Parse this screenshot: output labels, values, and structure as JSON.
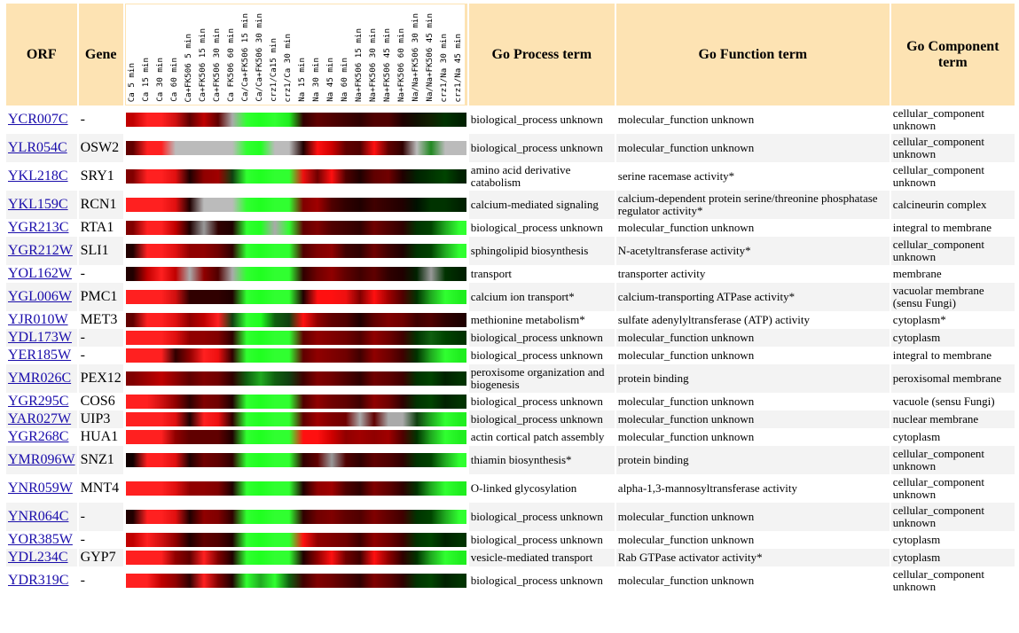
{
  "headers": {
    "orf": "ORF",
    "gene": "Gene",
    "process": "Go Process term",
    "function": "Go Function term",
    "component": "Go Component term"
  },
  "conditions": [
    "Ca 5 min",
    "Ca 15 min",
    "Ca 30 min",
    "Ca 60 min",
    "Ca+FK506 5 min",
    "Ca+FK506 15 min",
    "Ca+FK506 30 min",
    "Ca FK506 60 min",
    "Ca/Ca+FK506 15 min",
    "Ca/Ca+FK506 30 min",
    "crz1/Ca15 min",
    "crz1/Ca 30 min",
    "Na 15 min",
    "Na 30 min",
    "Na 45 min",
    "Na 60 min",
    "Na+FK506 15 min",
    "Na+FK506 30 min",
    "Na+FK506 45 min",
    "Na+FK506 60 min",
    "Na/Na+FK506 30 min",
    "Na/Na+FK506 45 min",
    "crz1/Na 30 min",
    "crz1/Na 45 min"
  ],
  "rows": [
    {
      "orf": "YCR007C",
      "gene": "-",
      "process": "biological_process unknown",
      "function": "molecular_function unknown",
      "component": "cellular_component unknown",
      "heat": [
        "#c00000",
        "#ff2020",
        "#ff2020",
        "#d01010",
        "#600000",
        "#c00000",
        "#600000",
        "#aaaaaa",
        "#30ff30",
        "#20ff20",
        "#30ff30",
        "#20ee20",
        "#300000",
        "#600000",
        "#500000",
        "#400000",
        "#300000",
        "#500000",
        "#500000",
        "#200000",
        "#101000",
        "#102000",
        "#003300",
        "#002200"
      ]
    },
    {
      "orf": "YLR054C",
      "gene": "OSW2",
      "process": "biological_process unknown",
      "function": "molecular_function unknown",
      "component": "cellular_component unknown",
      "heat": [
        "#600000",
        "#ff2020",
        "#ff2020",
        "#bbbbbb",
        "#bbbbbb",
        "#bbbbbb",
        "#bbbbbb",
        "#bbbbbb",
        "#30ff30",
        "#20ff20",
        "#bbbbbb",
        "#bbbbbb",
        "#200000",
        "#ff1010",
        "#d00000",
        "#600000",
        "#500000",
        "#ff1010",
        "#600000",
        "#300000",
        "#bbbbbb",
        "#208820",
        "#bbbbbb",
        "#bbbbbb"
      ]
    },
    {
      "orf": "YKL218C",
      "gene": "SRY1",
      "process": "amino acid derivative catabolism",
      "function": "serine racemase activity*",
      "component": "cellular_component unknown",
      "heat": [
        "#800000",
        "#ff2020",
        "#ff2020",
        "#e01010",
        "#200000",
        "#900000",
        "#a00000",
        "#104010",
        "#30ff30",
        "#20ff20",
        "#30ff30",
        "#30ff30",
        "#ee1010",
        "#700000",
        "#ff1010",
        "#500000",
        "#200000",
        "#600000",
        "#700000",
        "#200000",
        "#002200",
        "#003300",
        "#004400",
        "#002200"
      ]
    },
    {
      "orf": "YKL159C",
      "gene": "RCN1",
      "process": "calcium-mediated signaling",
      "function": "calcium-dependent protein serine/threonine phosphatase regulator activity*",
      "component": "calcineurin complex",
      "heat": [
        "#ff2020",
        "#ff2020",
        "#ff2020",
        "#e01010",
        "#200000",
        "#bbbbbb",
        "#bbbbbb",
        "#bbbbbb",
        "#30ff30",
        "#20ff20",
        "#30ff30",
        "#30ff30",
        "#800000",
        "#a00000",
        "#500000",
        "#300000",
        "#200000",
        "#400000",
        "#300000",
        "#200000",
        "#001100",
        "#003300",
        "#003300",
        "#002200"
      ]
    },
    {
      "orf": "YGR213C",
      "gene": "RTA1",
      "process": "biological_process unknown",
      "function": "molecular_function unknown",
      "component": "integral to membrane",
      "heat": [
        "#800000",
        "#ff2020",
        "#ff2020",
        "#c00000",
        "#200000",
        "#999999",
        "#300000",
        "#200000",
        "#30ff30",
        "#20ff20",
        "#aaaaaa",
        "#30ff30",
        "#600000",
        "#800000",
        "#500000",
        "#400000",
        "#300000",
        "#700000",
        "#500000",
        "#300000",
        "#003300",
        "#004400",
        "#20aa20",
        "#30ff30"
      ]
    },
    {
      "orf": "YGR212W",
      "gene": "SLI1",
      "process": "sphingolipid biosynthesis",
      "function": "N-acetyltransferase activity*",
      "component": "cellular_component unknown",
      "heat": [
        "#200000",
        "#ff2020",
        "#ff2020",
        "#e01010",
        "#900000",
        "#900000",
        "#700000",
        "#300000",
        "#30ff30",
        "#20ff20",
        "#30ff30",
        "#30ff30",
        "#500000",
        "#800000",
        "#900000",
        "#400000",
        "#300000",
        "#700000",
        "#400000",
        "#200000",
        "#003300",
        "#004400",
        "#20aa20",
        "#30ff30"
      ]
    },
    {
      "orf": "YOL162W",
      "gene": "-",
      "process": "transport",
      "function": "transporter activity",
      "component": "membrane",
      "heat": [
        "#200000",
        "#c00000",
        "#ff2020",
        "#c00000",
        "#aaaaaa",
        "#900000",
        "#500000",
        "#aaaaaa",
        "#30ff30",
        "#20ff20",
        "#30ff30",
        "#30ff30",
        "#300000",
        "#700000",
        "#900000",
        "#600000",
        "#400000",
        "#600000",
        "#300000",
        "#200000",
        "#002200",
        "#999999",
        "#003300",
        "#002200"
      ]
    },
    {
      "orf": "YGL006W",
      "gene": "PMC1",
      "process": "calcium ion transport*",
      "function": "calcium-transporting ATPase activity*",
      "component": "vacuolar membrane (sensu Fungi)",
      "heat": [
        "#ff2020",
        "#ff2020",
        "#ff2020",
        "#d01010",
        "#300000",
        "#300000",
        "#300000",
        "#200000",
        "#30ff30",
        "#20ff20",
        "#30ff30",
        "#30ff30",
        "#200000",
        "#ff1010",
        "#ff1010",
        "#ee1010",
        "#800000",
        "#ff1010",
        "#a00000",
        "#500000",
        "#003300",
        "#20aa20",
        "#30ff30",
        "#20ee20"
      ]
    },
    {
      "orf": "YJR010W",
      "gene": "MET3",
      "process": "methionine metabolism*",
      "function": "sulfate adenylyltransferase (ATP) activity",
      "component": "cytoplasm*",
      "heat": [
        "#600000",
        "#ff2020",
        "#ff2020",
        "#e01010",
        "#900000",
        "#c00000",
        "#ff2020",
        "#104010",
        "#30ff30",
        "#20ff20",
        "#106010",
        "#104010",
        "#ff1010",
        "#900000",
        "#600000",
        "#500000",
        "#200000",
        "#600000",
        "#800000",
        "#700000",
        "#400000",
        "#500000",
        "#300000",
        "#200000"
      ]
    },
    {
      "orf": "YDL173W",
      "gene": "-",
      "process": "biological_process unknown",
      "function": "molecular_function unknown",
      "component": "cytoplasm",
      "heat": [
        "#ff2020",
        "#ff2020",
        "#ff2020",
        "#e01010",
        "#900000",
        "#900000",
        "#800000",
        "#300000",
        "#30ff30",
        "#20ff20",
        "#30ff30",
        "#30ff30",
        "#600000",
        "#900000",
        "#800000",
        "#700000",
        "#500000",
        "#900000",
        "#700000",
        "#400000",
        "#003300",
        "#106010",
        "#004400",
        "#003300"
      ]
    },
    {
      "orf": "YER185W",
      "gene": "-",
      "process": "biological_process unknown",
      "function": "molecular_function unknown",
      "component": "integral to membrane",
      "heat": [
        "#ff2020",
        "#ff2020",
        "#ff2020",
        "#300000",
        "#900000",
        "#ff2020",
        "#ee1010",
        "#300000",
        "#30ff30",
        "#20ff20",
        "#30ff30",
        "#30ff30",
        "#600000",
        "#900000",
        "#800000",
        "#700000",
        "#400000",
        "#900000",
        "#700000",
        "#400000",
        "#003300",
        "#20aa20",
        "#30ff30",
        "#20ee20"
      ]
    },
    {
      "orf": "YMR026C",
      "gene": "PEX12",
      "process": "peroxisome organization and biogenesis",
      "function": "protein binding",
      "component": "peroxisomal membrane",
      "heat": [
        "#800000",
        "#a00000",
        "#c00000",
        "#900000",
        "#600000",
        "#800000",
        "#700000",
        "#300000",
        "#106010",
        "#20aa20",
        "#106010",
        "#104010",
        "#400000",
        "#800000",
        "#700000",
        "#500000",
        "#300000",
        "#700000",
        "#600000",
        "#400000",
        "#003300",
        "#004400",
        "#002200",
        "#003300"
      ]
    },
    {
      "orf": "YGR295C",
      "gene": "COS6",
      "process": "biological_process unknown",
      "function": "molecular_function unknown",
      "component": "vacuole (sensu Fungi)",
      "heat": [
        "#ff2020",
        "#ff2020",
        "#d01010",
        "#900000",
        "#300000",
        "#800000",
        "#700000",
        "#200000",
        "#30ff30",
        "#20ff20",
        "#30ff30",
        "#30ff30",
        "#500000",
        "#900000",
        "#700000",
        "#600000",
        "#400000",
        "#900000",
        "#700000",
        "#300000",
        "#003300",
        "#004400",
        "#002200",
        "#003300"
      ]
    },
    {
      "orf": "YAR027W",
      "gene": "UIP3",
      "process": "biological_process unknown",
      "function": "molecular_function unknown",
      "component": "nuclear membrane",
      "heat": [
        "#ff2020",
        "#ff2020",
        "#ff2020",
        "#e01010",
        "#200000",
        "#ff2020",
        "#ee1010",
        "#300000",
        "#30ff30",
        "#20ff20",
        "#30ff30",
        "#30ff30",
        "#600000",
        "#a00000",
        "#800000",
        "#700000",
        "#aaaaaa",
        "#600000",
        "#aaaaaa",
        "#aaaaaa",
        "#104010",
        "#20aa20",
        "#30ff30",
        "#20ee20"
      ]
    },
    {
      "orf": "YGR268C",
      "gene": "HUA1",
      "process": "actin cortical patch assembly",
      "function": "molecular_function unknown",
      "component": "cytoplasm",
      "heat": [
        "#ff2020",
        "#ff2020",
        "#ff2020",
        "#900000",
        "#600000",
        "#600000",
        "#600000",
        "#200000",
        "#30ff30",
        "#20ff20",
        "#30ff30",
        "#30ff30",
        "#ff1010",
        "#ff1010",
        "#d00000",
        "#900000",
        "#a00000",
        "#900000",
        "#a00000",
        "#500000",
        "#003300",
        "#20aa20",
        "#30ff30",
        "#20ee20"
      ]
    },
    {
      "orf": "YMR096W",
      "gene": "SNZ1",
      "process": "thiamin biosynthesis*",
      "function": "protein binding",
      "component": "cellular_component unknown",
      "heat": [
        "#100000",
        "#ff2020",
        "#ff2020",
        "#e01010",
        "#200000",
        "#700000",
        "#600000",
        "#300000",
        "#30ff30",
        "#20ff20",
        "#30ff30",
        "#30ff30",
        "#300000",
        "#600000",
        "#999999",
        "#500000",
        "#300000",
        "#600000",
        "#500000",
        "#300000",
        "#003300",
        "#004400",
        "#20aa20",
        "#30ff30"
      ]
    },
    {
      "orf": "YNR059W",
      "gene": "MNT4",
      "process": "O-linked glycosylation",
      "function": "alpha-1,3-mannosyltransferase activity",
      "component": "cellular_component unknown",
      "heat": [
        "#ff2020",
        "#ff2020",
        "#ff2020",
        "#e01010",
        "#900000",
        "#900000",
        "#800000",
        "#200000",
        "#30ff30",
        "#20ff20",
        "#30ff30",
        "#30ff30",
        "#200000",
        "#900000",
        "#a00000",
        "#500000",
        "#300000",
        "#800000",
        "#600000",
        "#300000",
        "#003300",
        "#20aa20",
        "#30ff30",
        "#20ee20"
      ]
    },
    {
      "orf": "YNR064C",
      "gene": "-",
      "process": "biological_process unknown",
      "function": "molecular_function unknown",
      "component": "cellular_component unknown",
      "heat": [
        "#200000",
        "#ff2020",
        "#ff2020",
        "#e01010",
        "#200000",
        "#900000",
        "#800000",
        "#300000",
        "#30ff30",
        "#20ff20",
        "#30ff30",
        "#30ff30",
        "#300000",
        "#700000",
        "#800000",
        "#600000",
        "#500000",
        "#800000",
        "#600000",
        "#400000",
        "#003300",
        "#004400",
        "#20aa20",
        "#30ff30"
      ]
    },
    {
      "orf": "YOR385W",
      "gene": "-",
      "process": "biological_process unknown",
      "function": "molecular_function unknown",
      "component": "cytoplasm",
      "heat": [
        "#c00000",
        "#ff2020",
        "#d01010",
        "#900000",
        "#200000",
        "#600000",
        "#500000",
        "#200000",
        "#30ff30",
        "#20ff20",
        "#30ff30",
        "#30ff30",
        "#ff1010",
        "#900000",
        "#800000",
        "#700000",
        "#400000",
        "#900000",
        "#700000",
        "#400000",
        "#003300",
        "#004400",
        "#002200",
        "#003300"
      ]
    },
    {
      "orf": "YDL234C",
      "gene": "GYP7",
      "process": "vesicle-mediated transport",
      "function": "Rab GTPase activator activity*",
      "component": "cytoplasm",
      "heat": [
        "#ff2020",
        "#ff2020",
        "#ff2020",
        "#900000",
        "#600000",
        "#ff2020",
        "#800000",
        "#200000",
        "#30ff30",
        "#20ff20",
        "#30ff30",
        "#30ff30",
        "#200000",
        "#900000",
        "#ff1010",
        "#700000",
        "#400000",
        "#ff1010",
        "#900000",
        "#300000",
        "#003300",
        "#20aa20",
        "#30ff30",
        "#20ee20"
      ]
    },
    {
      "orf": "YDR319C",
      "gene": "-",
      "process": "biological_process unknown",
      "function": "molecular_function unknown",
      "component": "cellular_component unknown",
      "heat": [
        "#ff2020",
        "#ff2020",
        "#c00000",
        "#900000",
        "#300000",
        "#ff2020",
        "#800000",
        "#200000",
        "#30ff30",
        "#20aa20",
        "#30ff30",
        "#106010",
        "#400000",
        "#800000",
        "#700000",
        "#500000",
        "#300000",
        "#800000",
        "#600000",
        "#300000",
        "#003300",
        "#004400",
        "#002200",
        "#003300"
      ]
    }
  ]
}
